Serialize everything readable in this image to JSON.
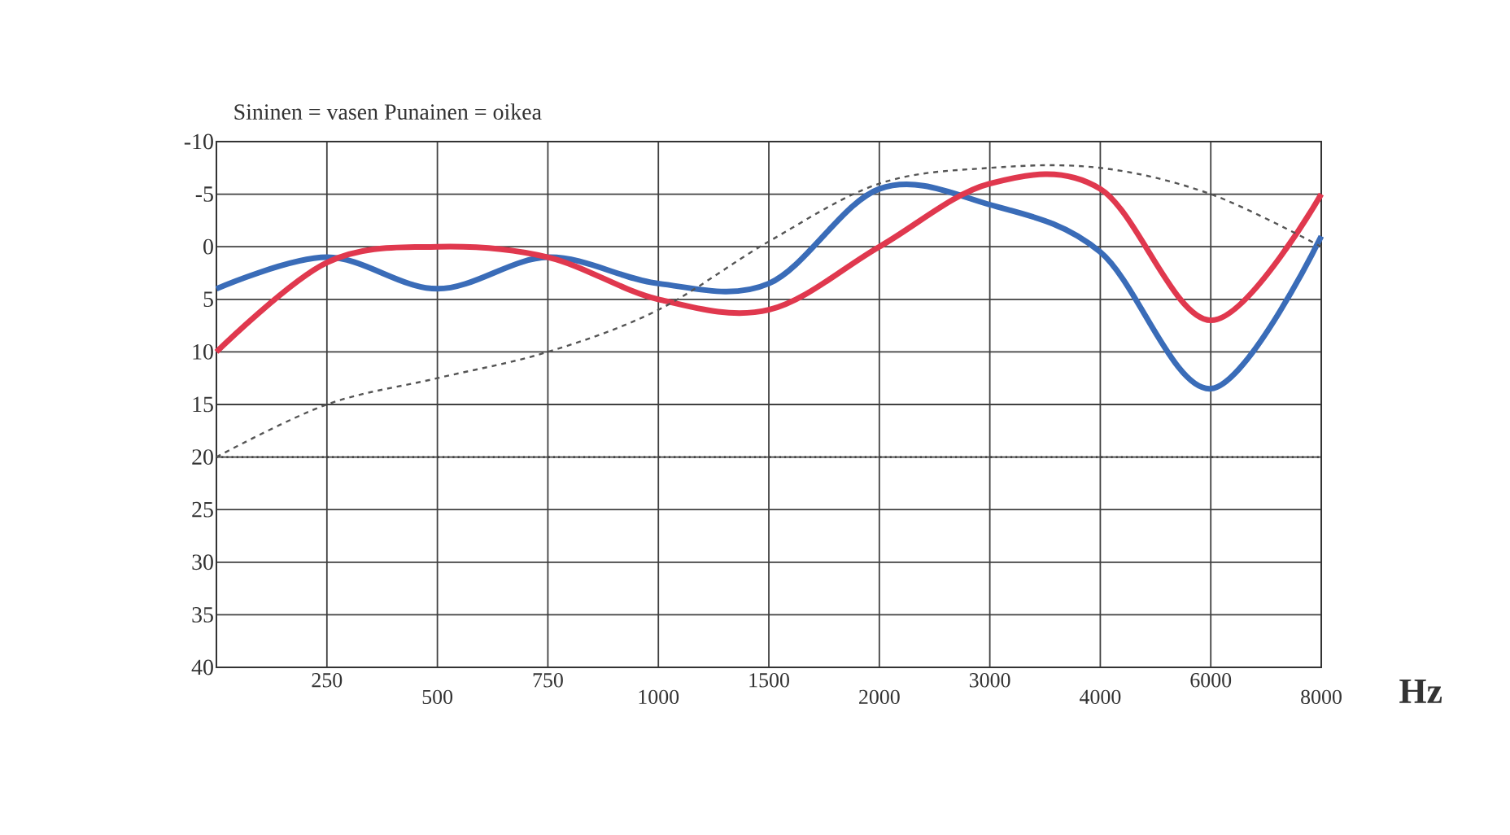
{
  "chart_data": {
    "type": "line",
    "title": "Sininen = vasen   Punainen = oikea",
    "xlabel": "Hz",
    "categories": [
      null,
      "250",
      "500",
      "750",
      "1000",
      "1500",
      "2000",
      "3000",
      "4000",
      "6000",
      "8000"
    ],
    "ylim": [
      40,
      -10
    ],
    "yticks": [
      -10,
      -5,
      0,
      5,
      10,
      15,
      20,
      25,
      30,
      35,
      40
    ],
    "grid": true,
    "series": [
      {
        "color": "#3a6cb8",
        "line_style": "solid",
        "values": [
          4,
          1,
          4,
          1,
          3.5,
          3.5,
          -5.5,
          -4,
          0.5,
          13.5,
          -1
        ]
      },
      {
        "color": "#e0384e",
        "line_style": "solid",
        "values": [
          10,
          1.5,
          0,
          1,
          5,
          6,
          0,
          -6,
          -5.5,
          7,
          -5
        ]
      },
      {
        "color": "#555555",
        "line_style": "dashed",
        "values": [
          20,
          15,
          12.5,
          10,
          6,
          -0.5,
          -6,
          -7.5,
          -7.5,
          -5,
          0
        ]
      }
    ],
    "ref_lines": [
      {
        "axis": "y",
        "value": 20,
        "color": "#333333",
        "line_style": "dotted"
      }
    ]
  }
}
